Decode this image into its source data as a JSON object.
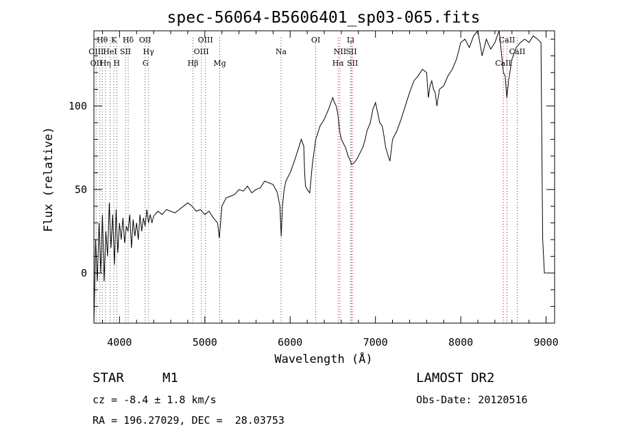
{
  "chart_data": {
    "type": "line",
    "title": "spec-56064-B5606401_sp03-065.fits",
    "xlabel": "Wavelength (Å)",
    "ylabel": "Flux (relative)",
    "xlim": [
      3700,
      9100
    ],
    "ylim": [
      -30,
      145
    ],
    "x_ticks": [
      4000,
      5000,
      6000,
      7000,
      8000,
      9000
    ],
    "y_ticks": [
      0,
      50,
      100
    ],
    "grid": false,
    "series": [
      {
        "color": "#000000",
        "x": [
          3700,
          3720,
          3740,
          3760,
          3780,
          3800,
          3820,
          3840,
          3860,
          3880,
          3900,
          3920,
          3940,
          3960,
          3980,
          4000,
          4020,
          4040,
          4060,
          4080,
          4100,
          4120,
          4140,
          4160,
          4180,
          4200,
          4220,
          4240,
          4260,
          4280,
          4300,
          4320,
          4340,
          4360,
          4380,
          4400,
          4450,
          4500,
          4550,
          4600,
          4650,
          4700,
          4750,
          4800,
          4850,
          4900,
          4950,
          5000,
          5050,
          5100,
          5150,
          5170,
          5200,
          5250,
          5300,
          5350,
          5400,
          5450,
          5500,
          5550,
          5600,
          5650,
          5700,
          5750,
          5800,
          5850,
          5880,
          5895,
          5910,
          5930,
          5950,
          6000,
          6050,
          6100,
          6130,
          6160,
          6170,
          6180,
          6200,
          6230,
          6260,
          6300,
          6350,
          6400,
          6450,
          6500,
          6520,
          6540,
          6560,
          6580,
          6600,
          6620,
          6650,
          6680,
          6700,
          6720,
          6750,
          6780,
          6800,
          6820,
          6850,
          6880,
          6900,
          6940,
          6970,
          7000,
          7030,
          7050,
          7080,
          7100,
          7120,
          7150,
          7170,
          7200,
          7250,
          7300,
          7350,
          7400,
          7450,
          7500,
          7550,
          7600,
          7620,
          7640,
          7660,
          7680,
          7700,
          7720,
          7750,
          7800,
          7850,
          7900,
          7950,
          8000,
          8050,
          8100,
          8150,
          8200,
          8250,
          8300,
          8350,
          8400,
          8450,
          8500,
          8520,
          8540,
          8560,
          8600,
          8650,
          8700,
          8750,
          8800,
          8850,
          8900,
          8940,
          8960,
          8980,
          9000
        ],
        "y": [
          -30,
          20,
          -5,
          30,
          0,
          35,
          -5,
          25,
          10,
          42,
          15,
          35,
          5,
          38,
          12,
          30,
          20,
          33,
          18,
          28,
          25,
          35,
          15,
          32,
          22,
          30,
          20,
          35,
          25,
          33,
          28,
          38,
          30,
          35,
          30,
          34,
          37,
          35,
          38,
          37,
          36,
          38,
          40,
          42,
          40,
          37,
          38,
          35,
          37,
          33,
          30,
          21,
          40,
          45,
          46,
          47,
          50,
          49,
          52,
          48,
          50,
          51,
          55,
          54,
          53,
          48,
          40,
          22,
          40,
          50,
          55,
          60,
          67,
          75,
          80,
          76,
          60,
          52,
          50,
          48,
          65,
          80,
          88,
          92,
          98,
          105,
          102,
          100,
          95,
          85,
          80,
          78,
          75,
          70,
          68,
          65,
          66,
          68,
          70,
          72,
          75,
          80,
          85,
          90,
          98,
          102,
          95,
          90,
          88,
          82,
          75,
          70,
          67,
          80,
          85,
          92,
          100,
          108,
          115,
          118,
          122,
          120,
          105,
          112,
          115,
          110,
          108,
          100,
          110,
          112,
          118,
          122,
          128,
          138,
          140,
          135,
          142,
          145,
          130,
          140,
          134,
          138,
          145,
          120,
          118,
          105,
          115,
          128,
          135,
          138,
          140,
          138,
          142,
          140,
          138,
          20,
          0,
          0
        ]
      }
    ],
    "line_labels": [
      {
        "name": "Hθ",
        "x": 3798,
        "row": 0
      },
      {
        "name": "K",
        "x": 3934,
        "row": 0
      },
      {
        "name": "Hδ",
        "x": 4102,
        "row": 0
      },
      {
        "name": "OII",
        "x": 4300,
        "row": 0
      },
      {
        "name": "OIII",
        "x": 5007,
        "row": 0
      },
      {
        "name": "OI",
        "x": 6300,
        "row": 0
      },
      {
        "name": "Li",
        "x": 6708,
        "row": 0
      },
      {
        "name": "CaII",
        "x": 8542,
        "row": 0
      },
      {
        "name": "OIII",
        "x": 3726,
        "row": 1
      },
      {
        "name": "HeI",
        "x": 3889,
        "row": 1
      },
      {
        "name": "SII",
        "x": 4070,
        "row": 1
      },
      {
        "name": "Hγ",
        "x": 4340,
        "row": 1
      },
      {
        "name": "OIII",
        "x": 4959,
        "row": 1
      },
      {
        "name": "Na",
        "x": 5893,
        "row": 1
      },
      {
        "name": "NII",
        "x": 6584,
        "row": 1
      },
      {
        "name": "SII",
        "x": 6717,
        "row": 1
      },
      {
        "name": "CaII",
        "x": 8662,
        "row": 1
      },
      {
        "name": "OII",
        "x": 3728,
        "row": 2
      },
      {
        "name": "Hη",
        "x": 3835,
        "row": 2
      },
      {
        "name": "H",
        "x": 3968,
        "row": 2
      },
      {
        "name": "G",
        "x": 4305,
        "row": 2
      },
      {
        "name": "Hβ",
        "x": 4861,
        "row": 2
      },
      {
        "name": "Mg",
        "x": 5175,
        "row": 2
      },
      {
        "name": "Hα",
        "x": 6563,
        "row": 2
      },
      {
        "name": "SII",
        "x": 6731,
        "row": 2
      },
      {
        "name": "CaII",
        "x": 8498,
        "row": 2
      }
    ],
    "marker_lines_black": [
      3726,
      3770,
      3798,
      3835,
      3889,
      3934,
      3968,
      4070,
      4102,
      4300,
      4340,
      4861,
      4959,
      5007,
      5175,
      5893,
      6300,
      6584,
      6708,
      6717
    ],
    "marker_lines_red": [
      6563,
      6731,
      8498,
      8542,
      8662
    ]
  },
  "info": {
    "object_type": "STAR",
    "subclass": "M1",
    "survey": "LAMOST DR2",
    "cz": "cz = -8.4 ± 1.8 km/s",
    "obs_date": "Obs-Date: 20120516",
    "coords": "RA = 196.27029, DEC =  28.03753"
  }
}
